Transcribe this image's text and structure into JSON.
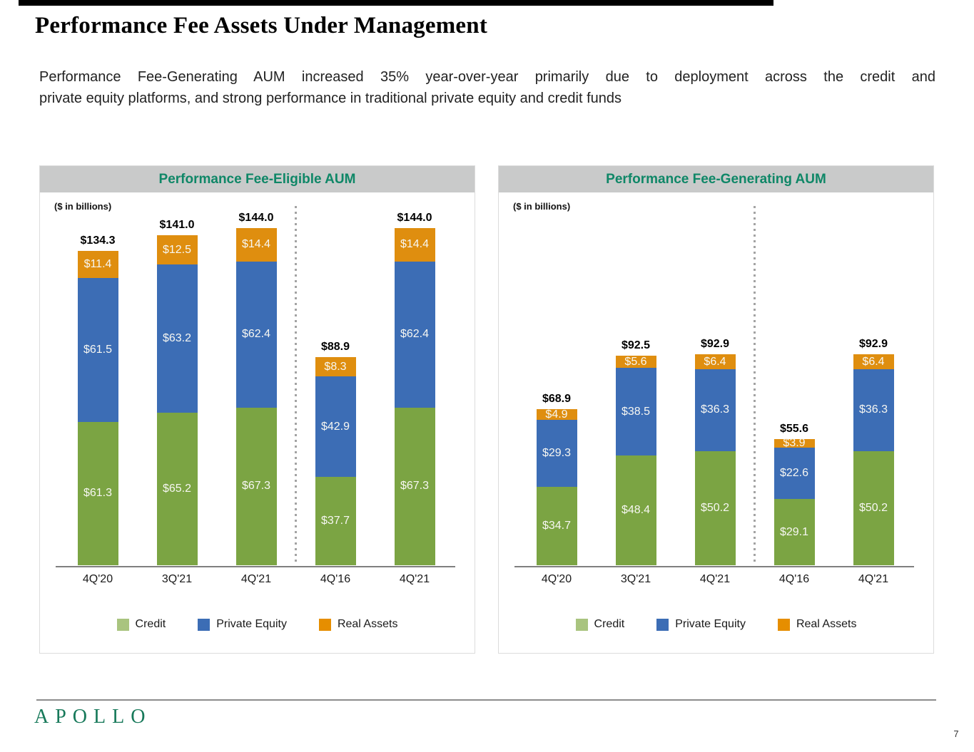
{
  "title": "Performance Fee Assets Under Management",
  "subtitle": {
    "line1": "Performance Fee-Generating AUM increased 35% year-over-year primarily due to deployment across the credit and",
    "line2": "private equity platforms, and strong performance in traditional private equity and credit funds"
  },
  "colors": {
    "credit_bar": "#7ba443",
    "credit_legend": "#a9c47f",
    "private_equity": "#3c6db5",
    "real_assets": "#df8e0f",
    "real_assets_legend": "#e68e00",
    "header_text_green": "#0f8767",
    "header_bg_gray": "#c9caca",
    "logo_green": "#17795a"
  },
  "chart_data": [
    {
      "type": "bar",
      "stacked": true,
      "title": "Performance Fee-Eligible AUM",
      "units_label": "($ in billions)",
      "categories": [
        "4Q'20",
        "3Q'21",
        "4Q'21",
        "4Q'16",
        "4Q'21"
      ],
      "series": [
        {
          "name": "Credit",
          "color": "#7ba443",
          "values": [
            61.3,
            65.2,
            67.3,
            37.7,
            67.3
          ]
        },
        {
          "name": "Private Equity",
          "color": "#3c6db5",
          "values": [
            61.5,
            63.2,
            62.4,
            42.9,
            62.4
          ]
        },
        {
          "name": "Real Assets",
          "color": "#df8e0f",
          "values": [
            11.4,
            12.5,
            14.4,
            8.3,
            14.4
          ]
        }
      ],
      "totals": [
        134.3,
        141.0,
        144.0,
        88.9,
        144.0
      ],
      "total_labels": [
        "$134.3",
        "$141.0",
        "$144.0",
        "$88.9",
        "$144.0"
      ],
      "legend": [
        {
          "label": "Credit",
          "swatch": "#a9c47f"
        },
        {
          "label": "Private Equity",
          "swatch": "#3c6db5"
        },
        {
          "label": "Real Assets",
          "swatch": "#e68e00"
        }
      ],
      "divider_after_index": 2,
      "ylim": [
        0,
        154
      ],
      "grid": false,
      "legend_position": "bottom"
    },
    {
      "type": "bar",
      "stacked": true,
      "title": "Performance Fee-Generating AUM",
      "units_label": "($ in billions)",
      "categories": [
        "4Q'20",
        "3Q'21",
        "4Q'21",
        "4Q'16",
        "4Q'21"
      ],
      "series": [
        {
          "name": "Credit",
          "color": "#7ba443",
          "values": [
            34.7,
            48.4,
            50.2,
            29.1,
            50.2
          ]
        },
        {
          "name": "Private Equity",
          "color": "#3c6db5",
          "values": [
            29.3,
            38.5,
            36.3,
            22.6,
            36.3
          ]
        },
        {
          "name": "Real Assets",
          "color": "#df8e0f",
          "values": [
            4.9,
            5.6,
            6.4,
            3.9,
            6.4
          ]
        }
      ],
      "totals": [
        68.9,
        92.5,
        92.9,
        55.6,
        92.9
      ],
      "total_labels": [
        "$68.9",
        "$92.5",
        "$92.9",
        "$55.6",
        "$92.9"
      ],
      "legend": [
        {
          "label": "Credit",
          "swatch": "#a9c47f"
        },
        {
          "label": "Private Equity",
          "swatch": "#3c6db5"
        },
        {
          "label": "Real Assets",
          "swatch": "#e68e00"
        }
      ],
      "divider_after_index": 2,
      "ylim": [
        0,
        159
      ],
      "grid": false,
      "legend_position": "bottom"
    }
  ],
  "footer": {
    "logo": "APOLLO",
    "page_number": "7"
  }
}
